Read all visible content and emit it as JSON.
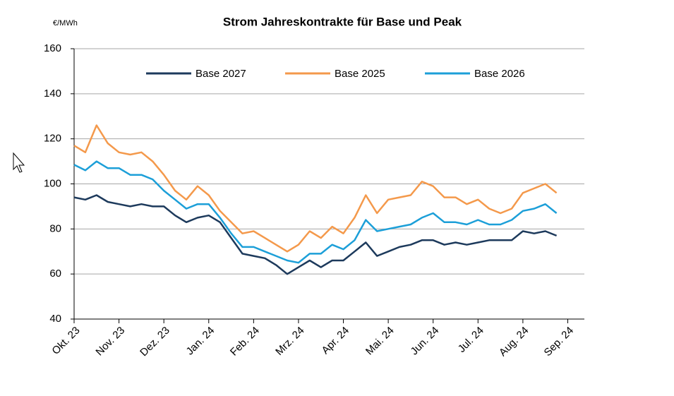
{
  "chart_data": {
    "type": "line",
    "title": "Strom Jahreskontrakte für Base und Peak",
    "y_axis_label": "€/MWh",
    "x": [
      0,
      0.25,
      0.5,
      0.75,
      1,
      1.25,
      1.5,
      1.75,
      2,
      2.25,
      2.5,
      2.75,
      3,
      3.25,
      3.5,
      3.75,
      4,
      4.25,
      4.5,
      4.75,
      5,
      5.25,
      5.5,
      5.75,
      6,
      6.25,
      6.5,
      6.75,
      7,
      7.25,
      7.5,
      7.75,
      8,
      8.25,
      8.5,
      8.75,
      9,
      9.25,
      9.5,
      9.75,
      10,
      10.25,
      10.5,
      10.75
    ],
    "series": [
      {
        "name": "Base 2027",
        "color": "#1d3a5c",
        "values": [
          94,
          93,
          95,
          92,
          91,
          90,
          91,
          90,
          90,
          86,
          83,
          85,
          86,
          83,
          76,
          69,
          68,
          67,
          64,
          60,
          63,
          66,
          63,
          66,
          66,
          70,
          74,
          68,
          70,
          72,
          73,
          75,
          75,
          73,
          74,
          73,
          74,
          75,
          75,
          75,
          79,
          78,
          79,
          77
        ]
      },
      {
        "name": "Base 2025",
        "color": "#f4994b",
        "values": [
          117,
          114,
          126,
          118,
          114,
          113,
          114,
          110,
          104,
          97,
          93,
          99,
          95,
          88,
          83,
          78,
          79,
          76,
          73,
          70,
          73,
          79,
          76,
          81,
          78,
          85,
          95,
          87,
          93,
          94,
          95,
          101,
          99,
          94,
          94,
          91,
          93,
          89,
          87,
          89,
          96,
          98,
          100,
          96
        ]
      },
      {
        "name": "Base 2026",
        "color": "#1c9fd8",
        "values": [
          108.5,
          106,
          110,
          107,
          107,
          104,
          104,
          102,
          97,
          93,
          89,
          91,
          91,
          85,
          78,
          72,
          72,
          70,
          68,
          66,
          65,
          69,
          69,
          73,
          71,
          75,
          84,
          79,
          80,
          81,
          82,
          85,
          87,
          83,
          83,
          82,
          84,
          82,
          82,
          84,
          88,
          89,
          91,
          87
        ]
      }
    ],
    "xlim": [
      0,
      11.37
    ],
    "xticks": [
      {
        "value": 0,
        "label": "Okt. 23"
      },
      {
        "value": 1,
        "label": "Nov. 23"
      },
      {
        "value": 2,
        "label": "Dez. 23"
      },
      {
        "value": 3,
        "label": "Jan. 24"
      },
      {
        "value": 4,
        "label": "Feb. 24"
      },
      {
        "value": 5,
        "label": "Mrz. 24"
      },
      {
        "value": 6,
        "label": "Apr. 24"
      },
      {
        "value": 7,
        "label": "Mai. 24"
      },
      {
        "value": 8,
        "label": "Jun. 24"
      },
      {
        "value": 9,
        "label": "Jul. 24"
      },
      {
        "value": 10,
        "label": "Aug. 24"
      },
      {
        "value": 11,
        "label": "Sep. 24"
      }
    ],
    "ylim": [
      40,
      160
    ],
    "yticks": [
      40,
      60,
      80,
      100,
      120,
      140,
      160
    ],
    "grid": true,
    "legend": "top"
  }
}
